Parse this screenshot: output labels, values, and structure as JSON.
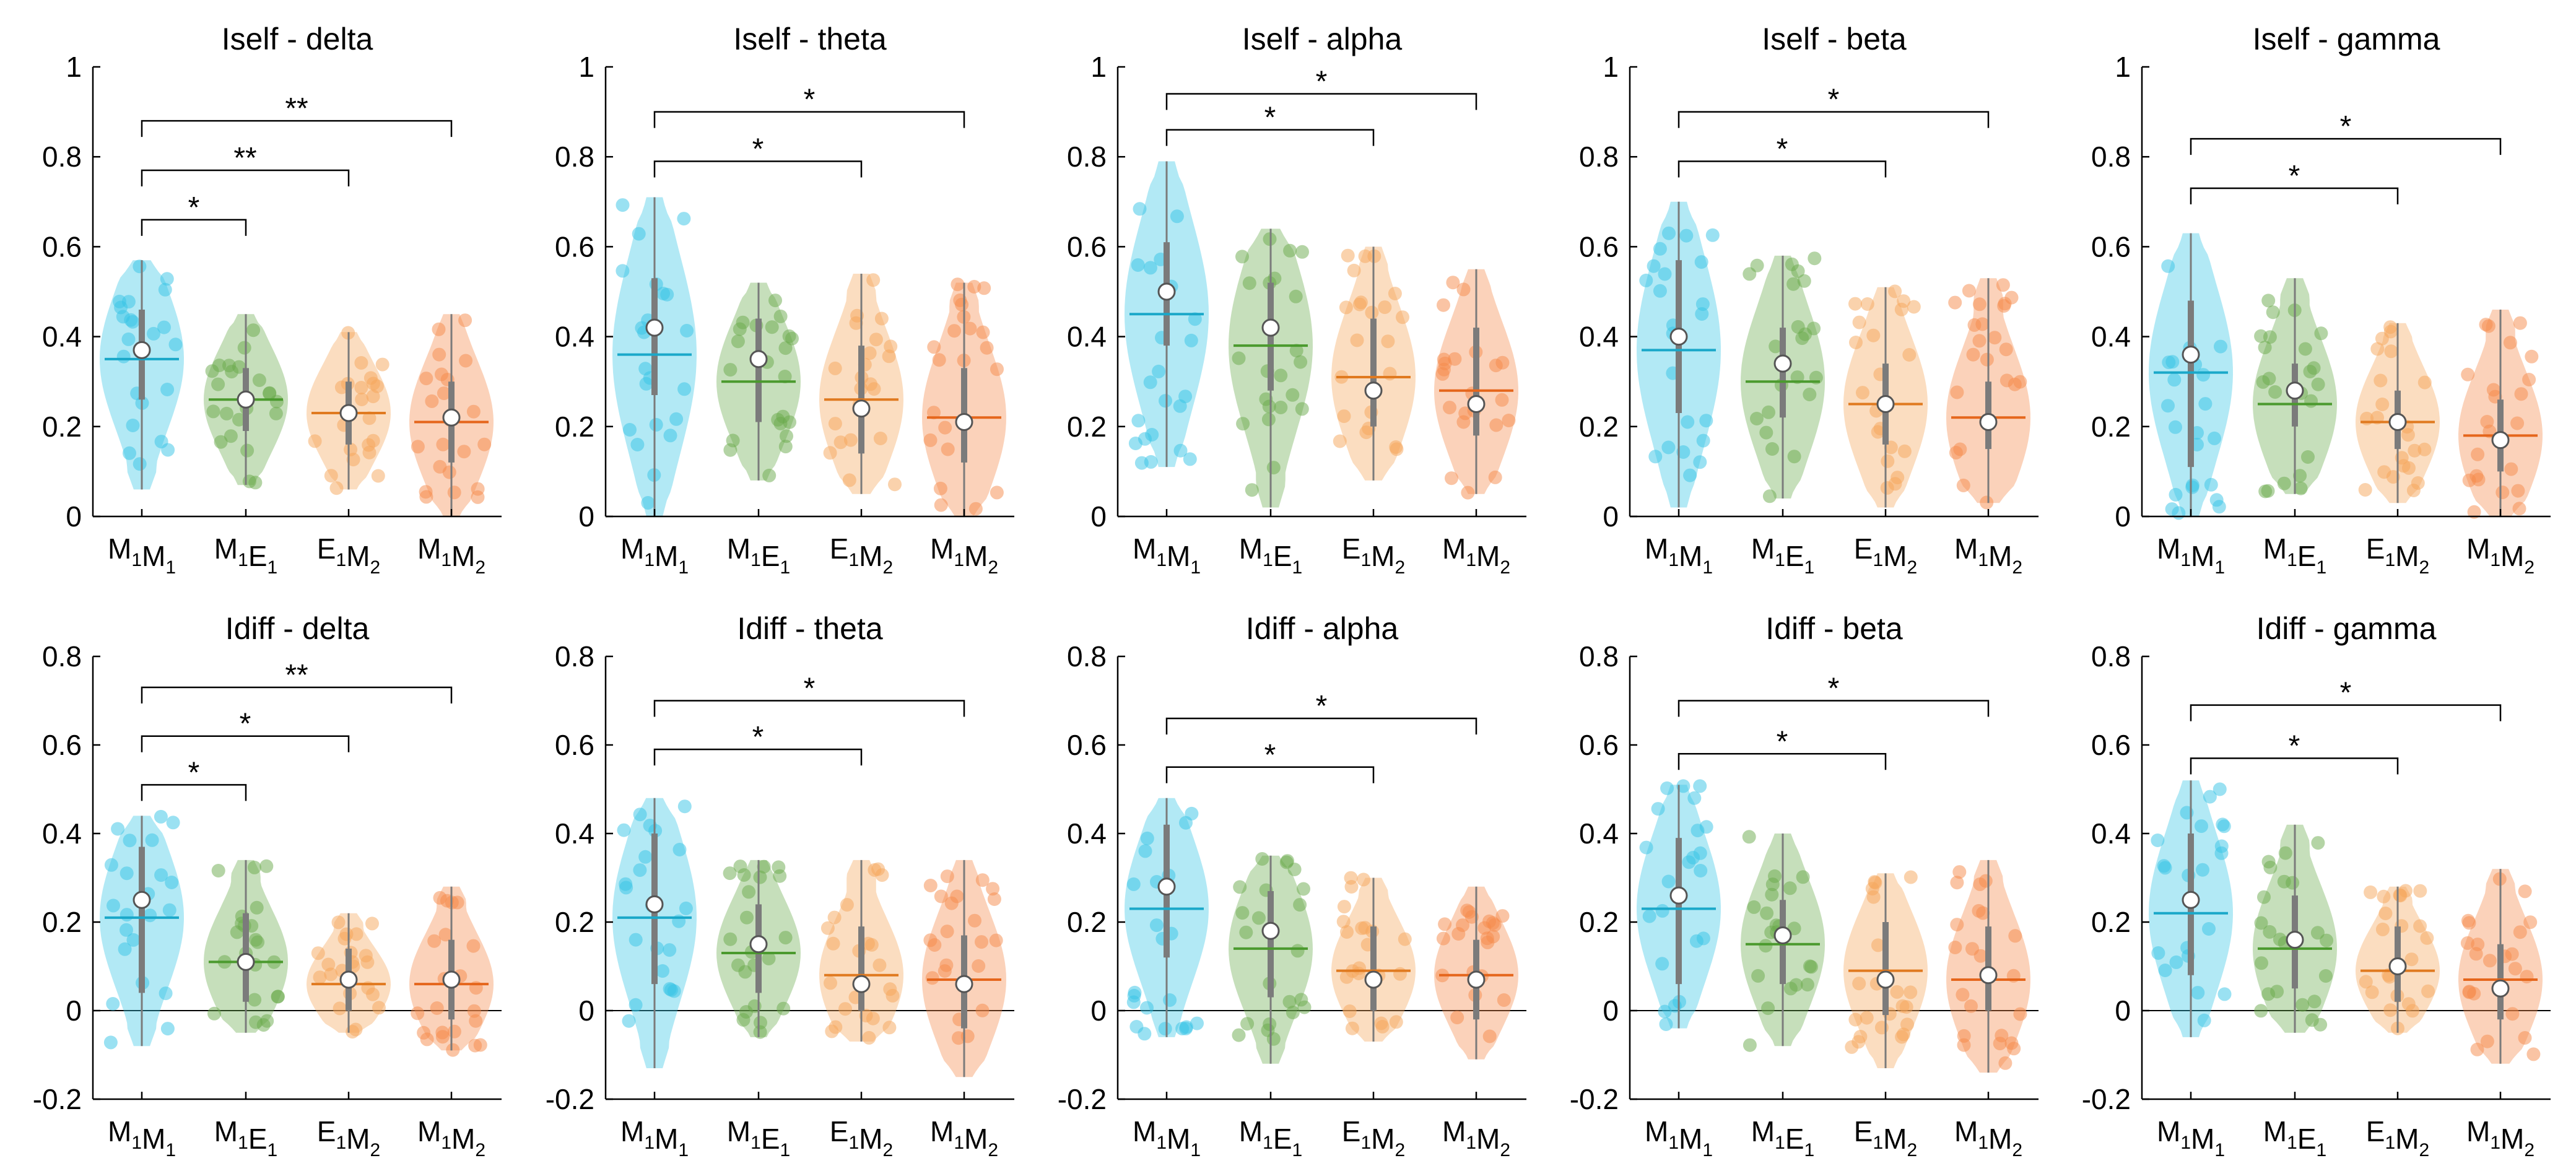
{
  "colors": {
    "M1M1": "#35c4e6",
    "M1E1": "#6aaa4c",
    "E1M2": "#f5a55a",
    "M1M2": "#f58a4a",
    "median_M1M1": "#1aa8c9",
    "median_M1E1": "#4b9a2e",
    "median_E1M2": "#e07a20",
    "median_M1M2": "#e5661c",
    "whisker": "#7b7b7b",
    "axis": "#000000"
  },
  "chart_data": [
    {
      "type": "violin",
      "title": "Iself - delta",
      "ylim": [
        0,
        1
      ],
      "yticks": [
        "0",
        "0.2",
        "0.4",
        "0.6",
        "0.8",
        "1"
      ],
      "ytick_values": [
        0,
        0.2,
        0.4,
        0.6,
        0.8,
        1
      ],
      "categories": [
        "M1M1",
        "M1E1",
        "E1M2",
        "M1M2"
      ],
      "groups": [
        {
          "mean": 0.37,
          "median": 0.35,
          "min": 0.06,
          "max": 0.57,
          "q1": 0.26,
          "q3": 0.46
        },
        {
          "mean": 0.26,
          "median": 0.26,
          "min": 0.07,
          "max": 0.45,
          "q1": 0.19,
          "q3": 0.33
        },
        {
          "mean": 0.23,
          "median": 0.23,
          "min": 0.06,
          "max": 0.41,
          "q1": 0.16,
          "q3": 0.3
        },
        {
          "mean": 0.22,
          "median": 0.21,
          "min": 0.0,
          "max": 0.45,
          "q1": 0.12,
          "q3": 0.3
        }
      ],
      "significance": [
        {
          "from": 0,
          "to": 1,
          "label": "*",
          "y": 0.66
        },
        {
          "from": 0,
          "to": 2,
          "label": "**",
          "y": 0.77
        },
        {
          "from": 0,
          "to": 3,
          "label": "**",
          "y": 0.88
        }
      ]
    },
    {
      "type": "violin",
      "title": "Iself - theta",
      "ylim": [
        0,
        1
      ],
      "yticks": [
        "0",
        "0.2",
        "0.4",
        "0.6",
        "0.8",
        "1"
      ],
      "ytick_values": [
        0,
        0.2,
        0.4,
        0.6,
        0.8,
        1
      ],
      "categories": [
        "M1M1",
        "M1E1",
        "E1M2",
        "M1M2"
      ],
      "groups": [
        {
          "mean": 0.42,
          "median": 0.36,
          "min": 0.0,
          "max": 0.71,
          "q1": 0.27,
          "q3": 0.53
        },
        {
          "mean": 0.35,
          "median": 0.3,
          "min": 0.08,
          "max": 0.52,
          "q1": 0.21,
          "q3": 0.44
        },
        {
          "mean": 0.24,
          "median": 0.26,
          "min": 0.05,
          "max": 0.54,
          "q1": 0.14,
          "q3": 0.38
        },
        {
          "mean": 0.21,
          "median": 0.22,
          "min": 0.0,
          "max": 0.52,
          "q1": 0.12,
          "q3": 0.33
        }
      ],
      "significance": [
        {
          "from": 0,
          "to": 2,
          "label": "*",
          "y": 0.79
        },
        {
          "from": 0,
          "to": 3,
          "label": "*",
          "y": 0.9
        }
      ]
    },
    {
      "type": "violin",
      "title": "Iself - alpha",
      "ylim": [
        0,
        1
      ],
      "yticks": [
        "0",
        "0.2",
        "0.4",
        "0.6",
        "0.8",
        "1"
      ],
      "ytick_values": [
        0,
        0.2,
        0.4,
        0.6,
        0.8,
        1
      ],
      "categories": [
        "M1M1",
        "M1E1",
        "E1M2",
        "M1M2"
      ],
      "groups": [
        {
          "mean": 0.5,
          "median": 0.45,
          "min": 0.11,
          "max": 0.79,
          "q1": 0.38,
          "q3": 0.61
        },
        {
          "mean": 0.42,
          "median": 0.38,
          "min": 0.02,
          "max": 0.64,
          "q1": 0.28,
          "q3": 0.52
        },
        {
          "mean": 0.28,
          "median": 0.31,
          "min": 0.08,
          "max": 0.6,
          "q1": 0.2,
          "q3": 0.44
        },
        {
          "mean": 0.25,
          "median": 0.28,
          "min": 0.05,
          "max": 0.55,
          "q1": 0.18,
          "q3": 0.42
        }
      ],
      "significance": [
        {
          "from": 0,
          "to": 2,
          "label": "*",
          "y": 0.86
        },
        {
          "from": 0,
          "to": 3,
          "label": "*",
          "y": 0.94
        }
      ]
    },
    {
      "type": "violin",
      "title": "Iself - beta",
      "ylim": [
        0,
        1
      ],
      "yticks": [
        "0",
        "0.2",
        "0.4",
        "0.6",
        "0.8",
        "1"
      ],
      "ytick_values": [
        0,
        0.2,
        0.4,
        0.6,
        0.8,
        1
      ],
      "categories": [
        "M1M1",
        "M1E1",
        "E1M2",
        "M1M2"
      ],
      "groups": [
        {
          "mean": 0.4,
          "median": 0.37,
          "min": 0.02,
          "max": 0.7,
          "q1": 0.23,
          "q3": 0.57
        },
        {
          "mean": 0.34,
          "median": 0.3,
          "min": 0.04,
          "max": 0.58,
          "q1": 0.22,
          "q3": 0.42
        },
        {
          "mean": 0.25,
          "median": 0.25,
          "min": 0.02,
          "max": 0.51,
          "q1": 0.16,
          "q3": 0.34
        },
        {
          "mean": 0.21,
          "median": 0.22,
          "min": 0.03,
          "max": 0.53,
          "q1": 0.15,
          "q3": 0.3
        }
      ],
      "significance": [
        {
          "from": 0,
          "to": 2,
          "label": "*",
          "y": 0.79
        },
        {
          "from": 0,
          "to": 3,
          "label": "*",
          "y": 0.9
        }
      ]
    },
    {
      "type": "violin",
      "title": "Iself - gamma",
      "ylim": [
        0,
        1
      ],
      "yticks": [
        "0",
        "0.2",
        "0.4",
        "0.6",
        "0.8",
        "1"
      ],
      "ytick_values": [
        0,
        0.2,
        0.4,
        0.6,
        0.8,
        1
      ],
      "categories": [
        "M1M1",
        "M1E1",
        "E1M2",
        "M1M2"
      ],
      "groups": [
        {
          "mean": 0.36,
          "median": 0.32,
          "min": 0.0,
          "max": 0.63,
          "q1": 0.11,
          "q3": 0.48
        },
        {
          "mean": 0.28,
          "median": 0.25,
          "min": 0.05,
          "max": 0.53,
          "q1": 0.2,
          "q3": 0.34
        },
        {
          "mean": 0.21,
          "median": 0.21,
          "min": 0.03,
          "max": 0.43,
          "q1": 0.15,
          "q3": 0.28
        },
        {
          "mean": 0.17,
          "median": 0.18,
          "min": 0.0,
          "max": 0.46,
          "q1": 0.1,
          "q3": 0.26
        }
      ],
      "significance": [
        {
          "from": 0,
          "to": 2,
          "label": "*",
          "y": 0.73
        },
        {
          "from": 0,
          "to": 3,
          "label": "*",
          "y": 0.84
        }
      ]
    },
    {
      "type": "violin",
      "title": "Idiff - delta",
      "ylim": [
        -0.2,
        0.8
      ],
      "yticks": [
        "-0.2",
        "0",
        "0.2",
        "0.4",
        "0.6",
        "0.8"
      ],
      "ytick_values": [
        -0.2,
        0,
        0.2,
        0.4,
        0.6,
        0.8
      ],
      "categories": [
        "M1M1",
        "M1E1",
        "E1M2",
        "M1M2"
      ],
      "groups": [
        {
          "mean": 0.25,
          "median": 0.21,
          "min": -0.08,
          "max": 0.44,
          "q1": 0.04,
          "q3": 0.37
        },
        {
          "mean": 0.11,
          "median": 0.11,
          "min": -0.05,
          "max": 0.34,
          "q1": 0.02,
          "q3": 0.22
        },
        {
          "mean": 0.07,
          "median": 0.06,
          "min": -0.05,
          "max": 0.22,
          "q1": 0.0,
          "q3": 0.14
        },
        {
          "mean": 0.07,
          "median": 0.06,
          "min": -0.09,
          "max": 0.28,
          "q1": -0.02,
          "q3": 0.16
        }
      ],
      "significance": [
        {
          "from": 0,
          "to": 1,
          "label": "*",
          "y": 0.51
        },
        {
          "from": 0,
          "to": 2,
          "label": "*",
          "y": 0.62
        },
        {
          "from": 0,
          "to": 3,
          "label": "**",
          "y": 0.73
        }
      ]
    },
    {
      "type": "violin",
      "title": "Idiff - theta",
      "ylim": [
        -0.2,
        0.8
      ],
      "yticks": [
        "-0.2",
        "0",
        "0.2",
        "0.4",
        "0.6",
        "0.8"
      ],
      "ytick_values": [
        -0.2,
        0,
        0.2,
        0.4,
        0.6,
        0.8
      ],
      "categories": [
        "M1M1",
        "M1E1",
        "E1M2",
        "M1M2"
      ],
      "groups": [
        {
          "mean": 0.24,
          "median": 0.21,
          "min": -0.13,
          "max": 0.48,
          "q1": 0.06,
          "q3": 0.4
        },
        {
          "mean": 0.15,
          "median": 0.13,
          "min": -0.06,
          "max": 0.34,
          "q1": 0.04,
          "q3": 0.24
        },
        {
          "mean": 0.06,
          "median": 0.08,
          "min": -0.07,
          "max": 0.34,
          "q1": 0.0,
          "q3": 0.19
        },
        {
          "mean": 0.06,
          "median": 0.07,
          "min": -0.15,
          "max": 0.34,
          "q1": -0.04,
          "q3": 0.17
        }
      ],
      "significance": [
        {
          "from": 0,
          "to": 2,
          "label": "*",
          "y": 0.59
        },
        {
          "from": 0,
          "to": 3,
          "label": "*",
          "y": 0.7
        }
      ]
    },
    {
      "type": "violin",
      "title": "Idiff - alpha",
      "ylim": [
        -0.2,
        0.8
      ],
      "yticks": [
        "-0.2",
        "0",
        "0.2",
        "0.4",
        "0.6",
        "0.8"
      ],
      "ytick_values": [
        -0.2,
        0,
        0.2,
        0.4,
        0.6,
        0.8
      ],
      "categories": [
        "M1M1",
        "M1E1",
        "E1M2",
        "M1M2"
      ],
      "groups": [
        {
          "mean": 0.28,
          "median": 0.23,
          "min": -0.06,
          "max": 0.48,
          "q1": 0.12,
          "q3": 0.42
        },
        {
          "mean": 0.18,
          "median": 0.14,
          "min": -0.12,
          "max": 0.35,
          "q1": 0.03,
          "q3": 0.27
        },
        {
          "mean": 0.07,
          "median": 0.09,
          "min": -0.07,
          "max": 0.3,
          "q1": 0.0,
          "q3": 0.19
        },
        {
          "mean": 0.07,
          "median": 0.08,
          "min": -0.11,
          "max": 0.28,
          "q1": -0.02,
          "q3": 0.16
        }
      ],
      "significance": [
        {
          "from": 0,
          "to": 2,
          "label": "*",
          "y": 0.55
        },
        {
          "from": 0,
          "to": 3,
          "label": "*",
          "y": 0.66
        }
      ]
    },
    {
      "type": "violin",
      "title": "Idiff - beta",
      "ylim": [
        -0.2,
        0.8
      ],
      "yticks": [
        "-0.2",
        "0",
        "0.2",
        "0.4",
        "0.6",
        "0.8"
      ],
      "ytick_values": [
        -0.2,
        0,
        0.2,
        0.4,
        0.6,
        0.8
      ],
      "categories": [
        "M1M1",
        "M1E1",
        "E1M2",
        "M1M2"
      ],
      "groups": [
        {
          "mean": 0.26,
          "median": 0.23,
          "min": -0.04,
          "max": 0.51,
          "q1": 0.06,
          "q3": 0.39
        },
        {
          "mean": 0.17,
          "median": 0.15,
          "min": -0.08,
          "max": 0.4,
          "q1": 0.06,
          "q3": 0.25
        },
        {
          "mean": 0.07,
          "median": 0.09,
          "min": -0.13,
          "max": 0.31,
          "q1": -0.01,
          "q3": 0.2
        },
        {
          "mean": 0.08,
          "median": 0.07,
          "min": -0.14,
          "max": 0.34,
          "q1": 0.0,
          "q3": 0.19
        }
      ],
      "significance": [
        {
          "from": 0,
          "to": 2,
          "label": "*",
          "y": 0.58
        },
        {
          "from": 0,
          "to": 3,
          "label": "*",
          "y": 0.7
        }
      ]
    },
    {
      "type": "violin",
      "title": "Idiff - gamma",
      "ylim": [
        -0.2,
        0.8
      ],
      "yticks": [
        "-0.2",
        "0",
        "0.2",
        "0.4",
        "0.6",
        "0.8"
      ],
      "ytick_values": [
        -0.2,
        0,
        0.2,
        0.4,
        0.6,
        0.8
      ],
      "categories": [
        "M1M1",
        "M1E1",
        "E1M2",
        "M1M2"
      ],
      "groups": [
        {
          "mean": 0.25,
          "median": 0.22,
          "min": -0.06,
          "max": 0.52,
          "q1": 0.08,
          "q3": 0.4
        },
        {
          "mean": 0.16,
          "median": 0.14,
          "min": -0.05,
          "max": 0.42,
          "q1": 0.05,
          "q3": 0.26
        },
        {
          "mean": 0.1,
          "median": 0.09,
          "min": -0.05,
          "max": 0.28,
          "q1": 0.02,
          "q3": 0.19
        },
        {
          "mean": 0.05,
          "median": 0.07,
          "min": -0.12,
          "max": 0.32,
          "q1": -0.02,
          "q3": 0.15
        }
      ],
      "significance": [
        {
          "from": 0,
          "to": 2,
          "label": "*",
          "y": 0.57
        },
        {
          "from": 0,
          "to": 3,
          "label": "*",
          "y": 0.69
        }
      ]
    }
  ]
}
